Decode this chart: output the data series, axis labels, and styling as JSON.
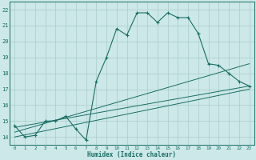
{
  "bg_color": "#cce8e8",
  "grid_color": "#aacccc",
  "line_color": "#1a6e64",
  "main_x": [
    0,
    1,
    2,
    3,
    4,
    5,
    6,
    7,
    8,
    9,
    10,
    11,
    12,
    13,
    14,
    15,
    16,
    17,
    18,
    19,
    20,
    21,
    22,
    23
  ],
  "main_y": [
    14.7,
    14.0,
    14.1,
    15.0,
    15.0,
    15.3,
    14.5,
    13.8,
    17.5,
    19.0,
    20.8,
    20.4,
    21.8,
    21.8,
    21.2,
    21.8,
    21.5,
    21.5,
    20.5,
    18.6,
    18.5,
    18.0,
    17.5,
    17.2
  ],
  "line1_x": [
    0,
    23
  ],
  "line1_y": [
    14.6,
    17.2
  ],
  "line2_x": [
    0,
    23
  ],
  "line2_y": [
    14.3,
    18.6
  ],
  "line3_x": [
    0,
    23
  ],
  "line3_y": [
    14.0,
    17.0
  ],
  "xlabel": "Humidex (Indice chaleur)",
  "xlim": [
    -0.5,
    23.5
  ],
  "ylim": [
    13.5,
    22.5
  ],
  "yticks": [
    14,
    15,
    16,
    17,
    18,
    19,
    20,
    21,
    22
  ],
  "xticks": [
    0,
    1,
    2,
    3,
    4,
    5,
    6,
    7,
    8,
    9,
    10,
    11,
    12,
    13,
    14,
    15,
    16,
    17,
    18,
    19,
    20,
    21,
    22,
    23
  ]
}
